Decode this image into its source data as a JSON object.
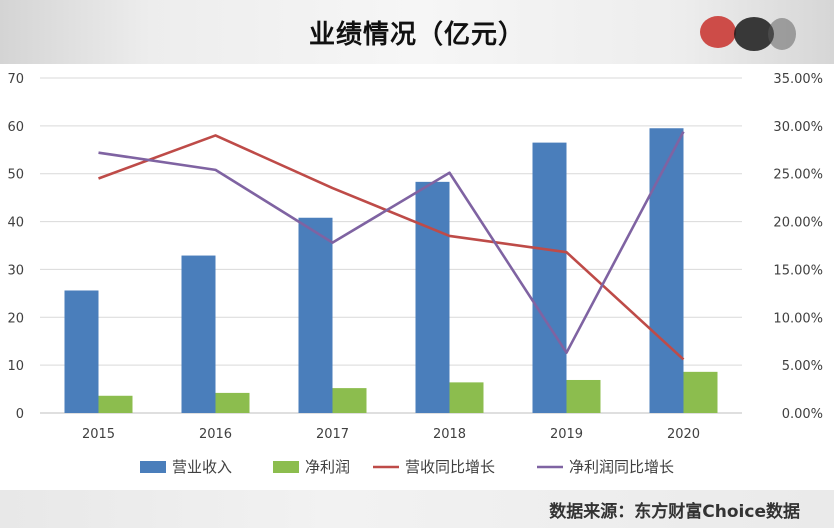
{
  "header": {
    "title": "业绩情况（亿元）"
  },
  "footer": {
    "source": "数据来源：东方财富Choice数据"
  },
  "colors": {
    "revenue": "#4a7ebb",
    "net_profit": "#8cbd4e",
    "revenue_growth": "#be4b48",
    "profit_growth": "#7f63a2",
    "grid": "#d9d9d9"
  },
  "chart_data": {
    "type": "bar",
    "title": "业绩情况（亿元）",
    "categories": [
      "2015",
      "2016",
      "2017",
      "2018",
      "2019",
      "2020"
    ],
    "series": [
      {
        "name": "营业收入",
        "type": "bar",
        "axis": "left",
        "values": [
          25.6,
          32.9,
          40.8,
          48.3,
          56.5,
          59.5
        ]
      },
      {
        "name": "净利润",
        "type": "bar",
        "axis": "left",
        "values": [
          3.6,
          4.2,
          5.2,
          6.4,
          6.9,
          8.6
        ]
      },
      {
        "name": "营收同比增长",
        "type": "line",
        "axis": "right",
        "values": [
          24.5,
          29.0,
          23.5,
          18.5,
          16.8,
          5.6
        ]
      },
      {
        "name": "净利润同比增长",
        "type": "line",
        "axis": "right",
        "values": [
          27.2,
          25.4,
          17.8,
          25.1,
          6.3,
          29.4
        ]
      }
    ],
    "y_left": {
      "min": 0,
      "max": 70,
      "step": 10,
      "ticks": [
        "0",
        "10",
        "20",
        "30",
        "40",
        "50",
        "60",
        "70"
      ]
    },
    "y_right": {
      "min": 0,
      "max": 35,
      "step": 5,
      "unit": "%",
      "ticks": [
        "0.00%",
        "5.00%",
        "10.00%",
        "15.00%",
        "20.00%",
        "25.00%",
        "30.00%",
        "35.00%"
      ]
    },
    "grid": true,
    "legend": "bottom"
  }
}
